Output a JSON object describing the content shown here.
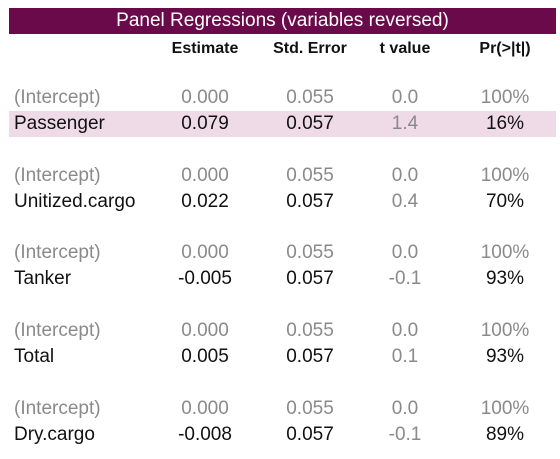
{
  "title": "Panel Regressions (variables reversed)",
  "columns": {
    "estimate": "Estimate",
    "std_error": "Std. Error",
    "t_value": "t value",
    "p_value": "Pr(>|t|)"
  },
  "colors": {
    "title_bg": "#6b0a4a",
    "highlight_bg": "#efdbe8",
    "muted_text": "#8a8a8a"
  },
  "rows": [
    {
      "label": "(Intercept)",
      "estimate": "0.000",
      "std_error": "0.055",
      "t_value": "0.0",
      "p_value": "100%"
    },
    {
      "label": "Passenger",
      "estimate": "0.079",
      "std_error": "0.057",
      "t_value": "1.4",
      "p_value": "16%"
    },
    {
      "label": "(Intercept)",
      "estimate": "0.000",
      "std_error": "0.055",
      "t_value": "0.0",
      "p_value": "100%"
    },
    {
      "label": "Unitized.cargo",
      "estimate": "0.022",
      "std_error": "0.057",
      "t_value": "0.4",
      "p_value": "70%"
    },
    {
      "label": "(Intercept)",
      "estimate": "0.000",
      "std_error": "0.055",
      "t_value": "0.0",
      "p_value": "100%"
    },
    {
      "label": "Tanker",
      "estimate": "-0.005",
      "std_error": "0.057",
      "t_value": "-0.1",
      "p_value": "93%"
    },
    {
      "label": "(Intercept)",
      "estimate": "0.000",
      "std_error": "0.055",
      "t_value": "0.0",
      "p_value": "100%"
    },
    {
      "label": "Total",
      "estimate": "0.005",
      "std_error": "0.057",
      "t_value": "0.1",
      "p_value": "93%"
    },
    {
      "label": "(Intercept)",
      "estimate": "0.000",
      "std_error": "0.055",
      "t_value": "0.0",
      "p_value": "100%"
    },
    {
      "label": "Dry.cargo",
      "estimate": "-0.008",
      "std_error": "0.057",
      "t_value": "-0.1",
      "p_value": "89%"
    }
  ]
}
